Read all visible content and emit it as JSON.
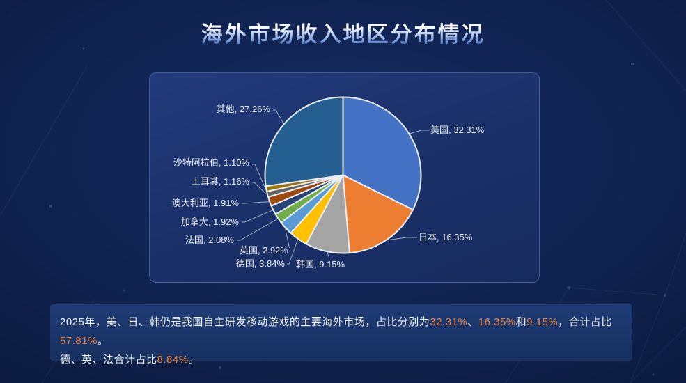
{
  "title": "海外市场收入地区分布情况",
  "chart_data": {
    "type": "pie",
    "title": "海外市场收入地区分布情况",
    "unit": "%",
    "start_angle": "top",
    "direction": "clockwise",
    "legend_position": "none",
    "label_format": "{label}, {value}%",
    "slices": [
      {
        "label": "美国",
        "value": 32.31,
        "color": "#4472C4"
      },
      {
        "label": "日本",
        "value": 16.35,
        "color": "#ED7D31"
      },
      {
        "label": "韩国",
        "value": 9.15,
        "color": "#A5A5A5"
      },
      {
        "label": "德国",
        "value": 3.84,
        "color": "#FFC000"
      },
      {
        "label": "英国",
        "value": 2.92,
        "color": "#5B9BD5"
      },
      {
        "label": "法国",
        "value": 2.08,
        "color": "#70AD47"
      },
      {
        "label": "加拿大",
        "value": 1.92,
        "color": "#264478"
      },
      {
        "label": "澳大利亚",
        "value": 1.91,
        "color": "#9E480E"
      },
      {
        "label": "土耳其",
        "value": 1.16,
        "color": "#636363"
      },
      {
        "label": "沙特阿拉伯",
        "value": 1.1,
        "color": "#997300"
      },
      {
        "label": "其他",
        "value": 27.26,
        "color": "#255E91"
      }
    ]
  },
  "note": {
    "highlight_color": "#ED7D31",
    "lines": [
      [
        {
          "text": "2025年，美、日、韩仍是我国自主研发移动游戏的主要海外市场，占比分别为",
          "highlight": false
        },
        {
          "text": "32.31%",
          "highlight": true
        },
        {
          "text": "、",
          "highlight": false
        },
        {
          "text": "16.35%",
          "highlight": true
        },
        {
          "text": "和",
          "highlight": false
        },
        {
          "text": "9.15%",
          "highlight": true
        },
        {
          "text": "，合计占比",
          "highlight": false
        },
        {
          "text": "57.81%",
          "highlight": true
        },
        {
          "text": "。",
          "highlight": false
        }
      ],
      [
        {
          "text": "德、英、法合计占比",
          "highlight": false
        },
        {
          "text": "8.84%",
          "highlight": true
        },
        {
          "text": "。",
          "highlight": false
        }
      ]
    ]
  }
}
